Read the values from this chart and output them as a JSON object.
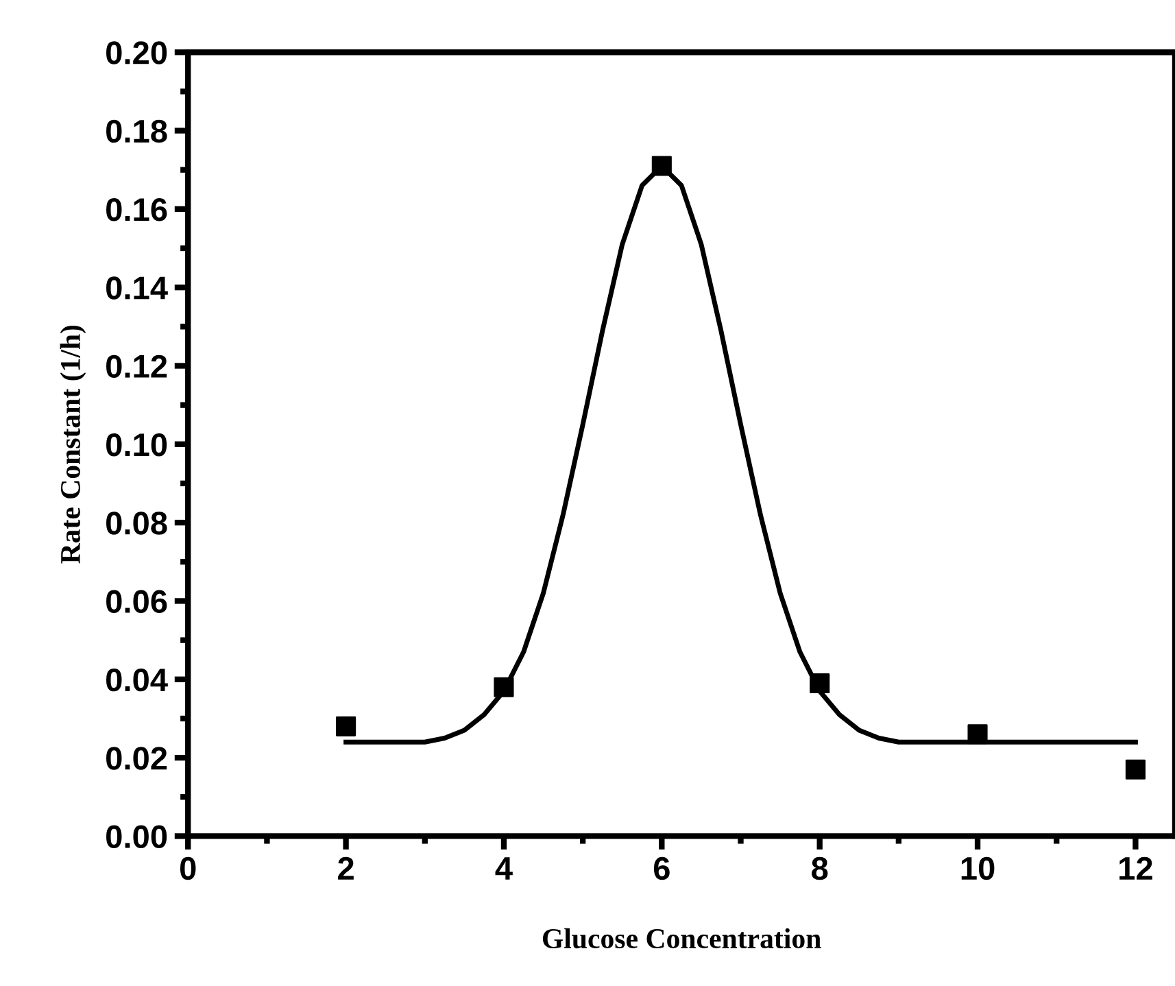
{
  "chart_data": {
    "type": "scatter",
    "xlabel": "Glucose Concentration",
    "ylabel": "Rate Constant (1/h)",
    "xlim": [
      0,
      12.5
    ],
    "xticks": [
      0,
      2,
      4,
      6,
      8,
      10,
      12
    ],
    "ylim": [
      0,
      0.2
    ],
    "yticks": [
      {
        "value": 0,
        "label": "0.00"
      },
      {
        "value": 0.02,
        "label": "0.02"
      },
      {
        "value": 0.04,
        "label": "0.04"
      },
      {
        "value": 0.06,
        "label": "0.06"
      },
      {
        "value": 0.08,
        "label": "0.08"
      },
      {
        "value": 0.1,
        "label": "0.10"
      },
      {
        "value": 0.12,
        "label": "0.12"
      },
      {
        "value": 0.14,
        "label": "0.14"
      },
      {
        "value": 0.16,
        "label": "0.16"
      },
      {
        "value": 0.18,
        "label": "0.18"
      },
      {
        "value": 0.2,
        "label": "0.20"
      }
    ],
    "grid": false,
    "legend": false,
    "series": [
      {
        "color": "#000000",
        "marker": "square",
        "x": [
          2,
          4,
          6,
          8,
          10,
          12
        ],
        "values": [
          0.028,
          0.038,
          0.171,
          0.039,
          0.026,
          0.017
        ]
      },
      {
        "type": "line",
        "color": "#000000",
        "marker": "none",
        "line_style": "solid",
        "x": [
          2,
          2.5,
          3,
          3.25,
          3.5,
          3.75,
          4,
          4.25,
          4.5,
          4.75,
          5,
          5.25,
          5.5,
          5.75,
          6,
          6.25,
          6.5,
          6.75,
          7,
          7.25,
          7.5,
          7.75,
          8,
          8.25,
          8.5,
          8.75,
          9,
          9.5,
          10,
          12
        ],
        "values": [
          0.024,
          0.024,
          0.024,
          0.025,
          0.027,
          0.031,
          0.037,
          0.047,
          0.062,
          0.082,
          0.105,
          0.129,
          0.151,
          0.166,
          0.171,
          0.166,
          0.151,
          0.129,
          0.105,
          0.082,
          0.062,
          0.047,
          0.037,
          0.031,
          0.027,
          0.025,
          0.024,
          0.024,
          0.024,
          0.024
        ]
      }
    ]
  }
}
